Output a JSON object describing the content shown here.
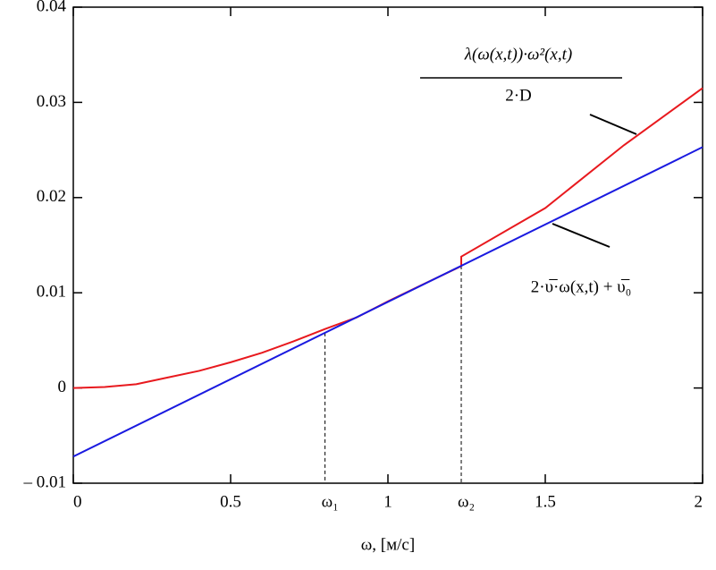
{
  "chart_data": {
    "type": "line",
    "annotations": [
      {
        "text": "λ(ω(x,t))·ω²(x,t)"
      },
      {
        "text": "2·D"
      },
      {
        "text": "2·υ̅·ω(x,t) + υ̅₀"
      }
    ],
    "x_label": "ω, [м/с]",
    "markers": [
      {
        "label": "ω₁",
        "x": 0.8
      },
      {
        "label": "ω₂",
        "x": 1.233
      }
    ],
    "series": [
      {
        "color": "#e8191e",
        "x": [
          0,
          0.1,
          0.2,
          0.3,
          0.4,
          0.5,
          0.6,
          0.7,
          0.8,
          0.9,
          1.0,
          1.1,
          1.233,
          1.233,
          1.5,
          1.75,
          2
        ],
        "values": [
          0,
          0.0001,
          0.0004,
          0.0011,
          0.0018,
          0.0027,
          0.0037,
          0.0049,
          0.0062,
          0.0074,
          0.0091,
          0.0107,
          0.0128,
          0.0138,
          0.0189,
          0.0255,
          0.0315
        ]
      },
      {
        "color": "#1a1ae0",
        "x": [
          0,
          2
        ],
        "values": [
          -0.0072,
          0.0253
        ]
      }
    ],
    "xlim": [
      0,
      2
    ],
    "xticks": [
      0,
      0.5,
      1,
      1.5,
      2
    ],
    "ylim": [
      -0.01,
      0.04
    ],
    "yticks": [
      {
        "value": -0.01,
        "label": "– 0.01"
      },
      0,
      0.01,
      0.02,
      0.03,
      0.04
    ]
  }
}
